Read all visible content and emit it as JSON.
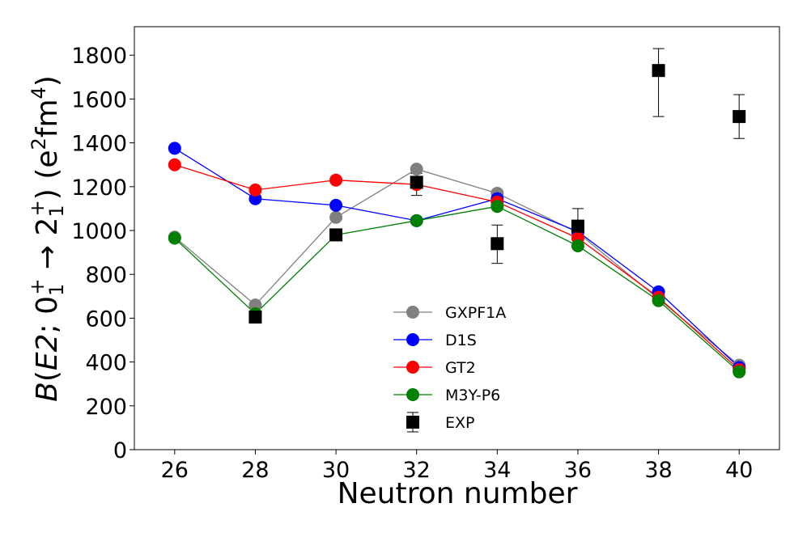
{
  "chart_data": {
    "type": "line",
    "xlabel": "Neutron number",
    "ylabel_parts": {
      "b": "B",
      "open": "(",
      "e2": "E2",
      "semi": "; ",
      "zero": "0",
      "one_a": "1",
      "plus_a": "+",
      "arrow": " → ",
      "two": "2",
      "one_b": "1",
      "plus_b": "+",
      "close": ") (e",
      "sq": "2",
      "fm": "fm",
      "four": "4",
      "end": ")"
    },
    "x_ticks": [
      26,
      28,
      30,
      32,
      34,
      36,
      38,
      40
    ],
    "y_ticks": [
      0,
      200,
      400,
      600,
      800,
      1000,
      1200,
      1400,
      1600,
      1800
    ],
    "xlim": [
      25,
      41
    ],
    "ylim": [
      0,
      1930
    ],
    "legend_position": "lower-center",
    "series": [
      {
        "name": "GXPF1A",
        "color": "#808080",
        "x": [
          26,
          28,
          30,
          32,
          34,
          36,
          40
        ],
        "y": [
          970,
          660,
          1060,
          1280,
          1170,
          990,
          385
        ]
      },
      {
        "name": "D1S",
        "color": "#0000ff",
        "x": [
          26,
          28,
          30,
          32,
          34,
          36,
          38,
          40
        ],
        "y": [
          1375,
          1145,
          1115,
          1045,
          1145,
          995,
          720,
          375
        ]
      },
      {
        "name": "GT2",
        "color": "#ff0000",
        "x": [
          26,
          28,
          30,
          32,
          34,
          36,
          38,
          40
        ],
        "y": [
          1300,
          1185,
          1230,
          1210,
          1130,
          965,
          695,
          365
        ]
      },
      {
        "name": "M3Y-P6",
        "color": "#008000",
        "x": [
          26,
          28,
          30,
          32,
          34,
          36,
          38,
          40
        ],
        "y": [
          965,
          620,
          980,
          1045,
          1110,
          930,
          680,
          355
        ]
      }
    ],
    "exp": {
      "name": "EXP",
      "color": "#000000",
      "x": [
        28,
        30,
        32,
        34,
        36,
        38,
        40
      ],
      "y": [
        605,
        980,
        1220,
        940,
        1020,
        1730,
        1520
      ],
      "err_low": [
        605,
        980,
        1160,
        850,
        940,
        1520,
        1420
      ],
      "err_high": [
        605,
        980,
        1260,
        1025,
        1100,
        1830,
        1620
      ]
    }
  }
}
